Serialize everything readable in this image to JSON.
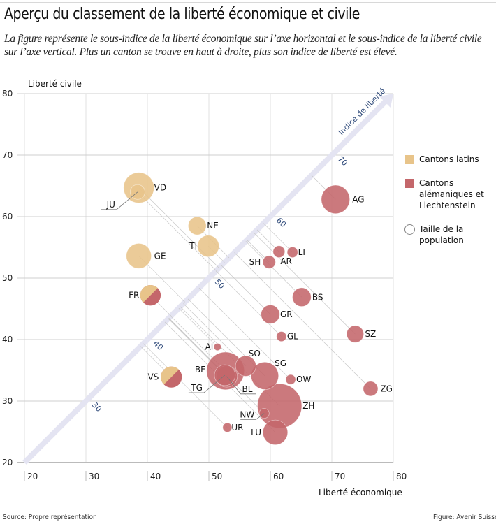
{
  "title": "Aperçu du classement de la liberté économique et civile",
  "subtitle": "La figure représente le sous-indice de la liberté économique sur l’axe horizontal et le sous-indice de la liberté civile sur l’axe vertical. Plus un canton se trouve en haut à droite, plus son indice de liberté est élevé.",
  "footer": {
    "source": "Source: Propre représentation",
    "credit": "Figure: Avenir Suisse"
  },
  "legend": {
    "latin": "Cantons latins",
    "german": "Cantons alémaniques et Liechtenstein",
    "size": "Taille de la population"
  },
  "colors": {
    "latin": "#E8C48A",
    "german": "#C4676B",
    "arrow": "#E4E4F2",
    "arrow_label": "#2F4A7A",
    "grid": "#D0D0D0"
  },
  "chart_data": {
    "type": "scatter",
    "title": "Aperçu du classement de la liberté économique et civile",
    "xlabel": "Liberté économique",
    "ylabel": "Liberté civile",
    "xlim": [
      20,
      80
    ],
    "ylim": [
      20,
      80
    ],
    "xticks": [
      20,
      30,
      40,
      50,
      60,
      70,
      80
    ],
    "yticks": [
      20,
      30,
      40,
      50,
      60,
      70,
      80
    ],
    "grid": true,
    "legend_position": "right",
    "diagonal": {
      "label": "Indice de liberté",
      "ticks": [
        30,
        40,
        50,
        60,
        70
      ]
    },
    "size_scale": "population",
    "points": [
      {
        "id": "VD",
        "x": 38.6,
        "y": 64.7,
        "group": "latin",
        "size": 7.6
      },
      {
        "id": "JU",
        "x": 38.4,
        "y": 64.0,
        "group": "latin",
        "size": 1.4,
        "leader": true
      },
      {
        "id": "NE",
        "x": 48.1,
        "y": 58.5,
        "group": "latin",
        "size": 2.3
      },
      {
        "id": "TI",
        "x": 49.9,
        "y": 55.2,
        "group": "latin",
        "size": 3.5
      },
      {
        "id": "GE",
        "x": 38.6,
        "y": 53.6,
        "group": "latin",
        "size": 4.9
      },
      {
        "id": "FR",
        "x": 40.5,
        "y": 47.2,
        "group": "mixed",
        "size": 3.1
      },
      {
        "id": "VS",
        "x": 43.9,
        "y": 33.9,
        "group": "mixed",
        "size": 3.3
      },
      {
        "id": "AG",
        "x": 70.6,
        "y": 62.8,
        "group": "german",
        "size": 6.5
      },
      {
        "id": "AR",
        "x": 61.4,
        "y": 54.3,
        "group": "german",
        "size": 0.8
      },
      {
        "id": "LI",
        "x": 63.6,
        "y": 54.2,
        "group": "german",
        "size": 0.6
      },
      {
        "id": "SH",
        "x": 59.8,
        "y": 52.6,
        "group": "german",
        "size": 1.0
      },
      {
        "id": "BS",
        "x": 65.1,
        "y": 46.9,
        "group": "german",
        "size": 2.5
      },
      {
        "id": "GR",
        "x": 60.0,
        "y": 44.1,
        "group": "german",
        "size": 2.5
      },
      {
        "id": "GL",
        "x": 61.8,
        "y": 40.5,
        "group": "german",
        "size": 0.5
      },
      {
        "id": "SZ",
        "x": 73.8,
        "y": 40.9,
        "group": "german",
        "size": 2.0
      },
      {
        "id": "AI",
        "x": 51.4,
        "y": 38.8,
        "group": "german",
        "size": 0.2
      },
      {
        "id": "SO",
        "x": 56.0,
        "y": 35.7,
        "group": "german",
        "size": 3.1
      },
      {
        "id": "SG",
        "x": 59.1,
        "y": 34.1,
        "group": "german",
        "size": 6.0
      },
      {
        "id": "OW",
        "x": 63.3,
        "y": 33.5,
        "group": "german",
        "size": 0.5
      },
      {
        "id": "ZG",
        "x": 76.3,
        "y": 32.0,
        "group": "german",
        "size": 1.4
      },
      {
        "id": "BE",
        "x": 52.7,
        "y": 34.9,
        "group": "german",
        "size": 12.0
      },
      {
        "id": "TG",
        "x": 52.6,
        "y": 34.2,
        "group": "german",
        "size": 3.2,
        "leader": true
      },
      {
        "id": "BL",
        "x": 52.9,
        "y": 34.0,
        "group": "german",
        "size": 3.4,
        "leader": true
      },
      {
        "id": "ZH",
        "x": 61.5,
        "y": 29.2,
        "group": "german",
        "size": 17.0
      },
      {
        "id": "NW",
        "x": 59.0,
        "y": 28.0,
        "group": "german",
        "size": 0.5,
        "leader": true
      },
      {
        "id": "LU",
        "x": 60.8,
        "y": 24.9,
        "group": "german",
        "size": 4.8
      },
      {
        "id": "UR",
        "x": 53.0,
        "y": 25.7,
        "group": "german",
        "size": 0.4
      }
    ]
  }
}
